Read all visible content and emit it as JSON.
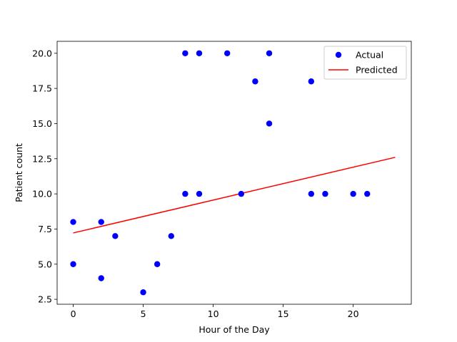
{
  "chart_data": {
    "type": "scatter",
    "title": "",
    "xlabel": "Hour of the Day",
    "ylabel": "Patient count",
    "xlim": [
      -1.15,
      24.15
    ],
    "ylim": [
      2.15,
      20.85
    ],
    "x_ticks": [
      0,
      5,
      10,
      15,
      20
    ],
    "x_tick_labels": [
      "0",
      "5",
      "10",
      "15",
      "20"
    ],
    "y_ticks": [
      2.5,
      5.0,
      7.5,
      10.0,
      12.5,
      15.0,
      17.5,
      20.0
    ],
    "y_tick_labels": [
      "2.5",
      "5.0",
      "7.5",
      "10.0",
      "12.5",
      "15.0",
      "17.5",
      "20.0"
    ],
    "grid": false,
    "legend_position": "top-right",
    "series": [
      {
        "name": "Actual",
        "kind": "scatter",
        "color": "#0000ff",
        "points": [
          [
            0,
            8
          ],
          [
            0,
            5
          ],
          [
            2,
            8
          ],
          [
            2,
            4
          ],
          [
            3,
            7
          ],
          [
            5,
            3
          ],
          [
            6,
            5
          ],
          [
            7,
            7
          ],
          [
            8,
            20
          ],
          [
            8,
            10
          ],
          [
            9,
            20
          ],
          [
            9,
            10
          ],
          [
            11,
            20
          ],
          [
            12,
            10
          ],
          [
            13,
            18
          ],
          [
            14,
            20
          ],
          [
            14,
            15
          ],
          [
            17,
            18
          ],
          [
            17,
            10
          ],
          [
            18,
            10
          ],
          [
            20,
            10
          ],
          [
            21,
            10
          ]
        ]
      },
      {
        "name": "Predicted",
        "kind": "line",
        "color": "#ff0000",
        "points": [
          [
            0,
            7.22
          ],
          [
            23,
            12.6
          ]
        ]
      }
    ]
  }
}
